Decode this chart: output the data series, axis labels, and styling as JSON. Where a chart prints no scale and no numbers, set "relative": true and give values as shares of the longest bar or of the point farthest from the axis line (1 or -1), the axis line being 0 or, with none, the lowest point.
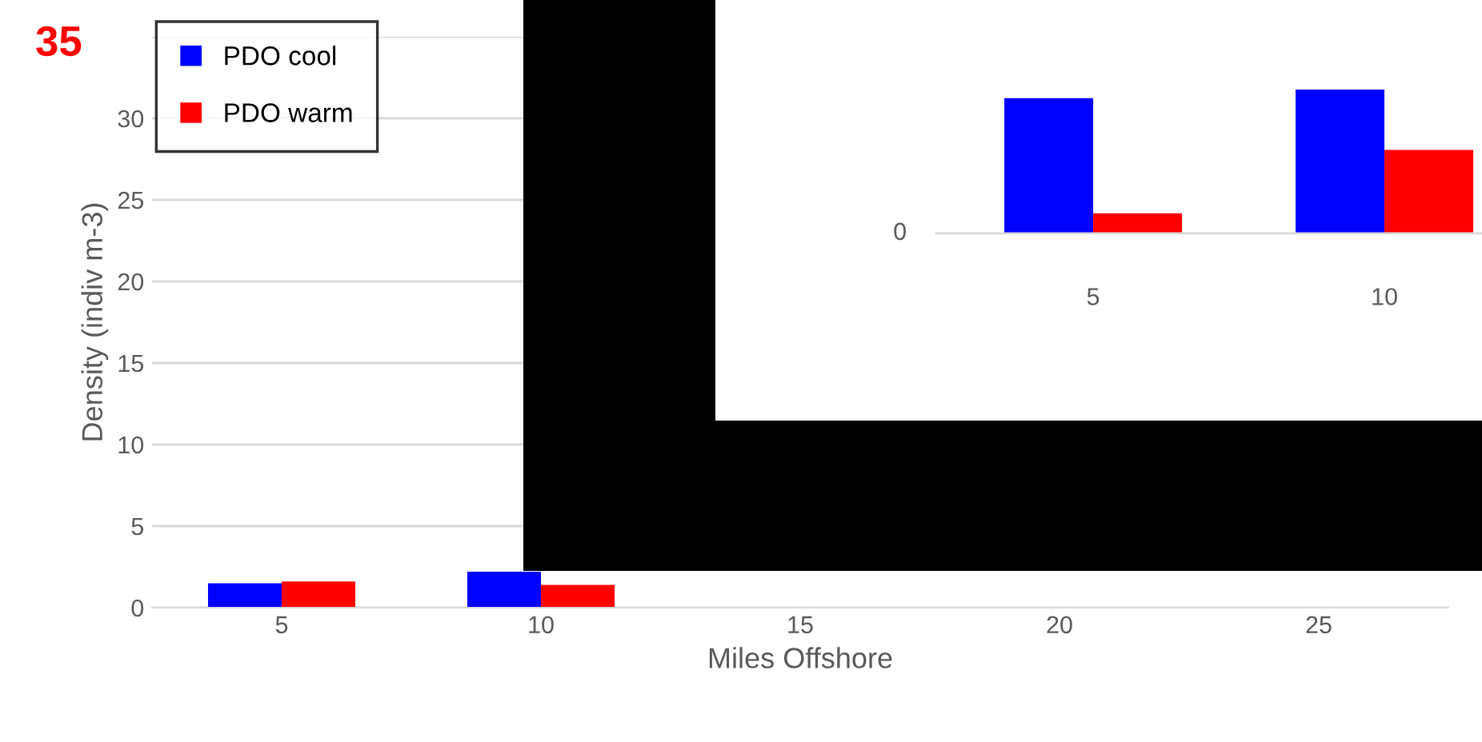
{
  "chart_data": [
    {
      "type": "bar",
      "xlabel": "Miles Offshore",
      "ylabel": "Density (indiv m-3)",
      "categories": [
        "5",
        "10",
        "15",
        "20",
        "25"
      ],
      "series": [
        {
          "name": "PDO cool",
          "color": "#0000ff",
          "values": [
            1.5,
            2.2,
            null,
            null,
            null
          ]
        },
        {
          "name": "PDO warm",
          "color": "#ff0000",
          "values": [
            1.6,
            1.4,
            null,
            null,
            null
          ]
        }
      ],
      "ylim": [
        0,
        35
      ],
      "yticks": [
        0,
        5,
        10,
        15,
        20,
        25,
        30,
        {
          "value": 35,
          "label": null
        }
      ],
      "grid": "y",
      "legend": "top left",
      "annotations": [
        "35"
      ]
    },
    {
      "type": "bar",
      "relative": true,
      "categories": [
        "5",
        "10"
      ],
      "series": [
        {
          "color": "#0000ff",
          "values": [
            0.94,
            1
          ]
        },
        {
          "color": "#ff0000",
          "values": [
            0.14,
            0.58
          ]
        }
      ],
      "annotations": [
        "0"
      ]
    }
  ]
}
